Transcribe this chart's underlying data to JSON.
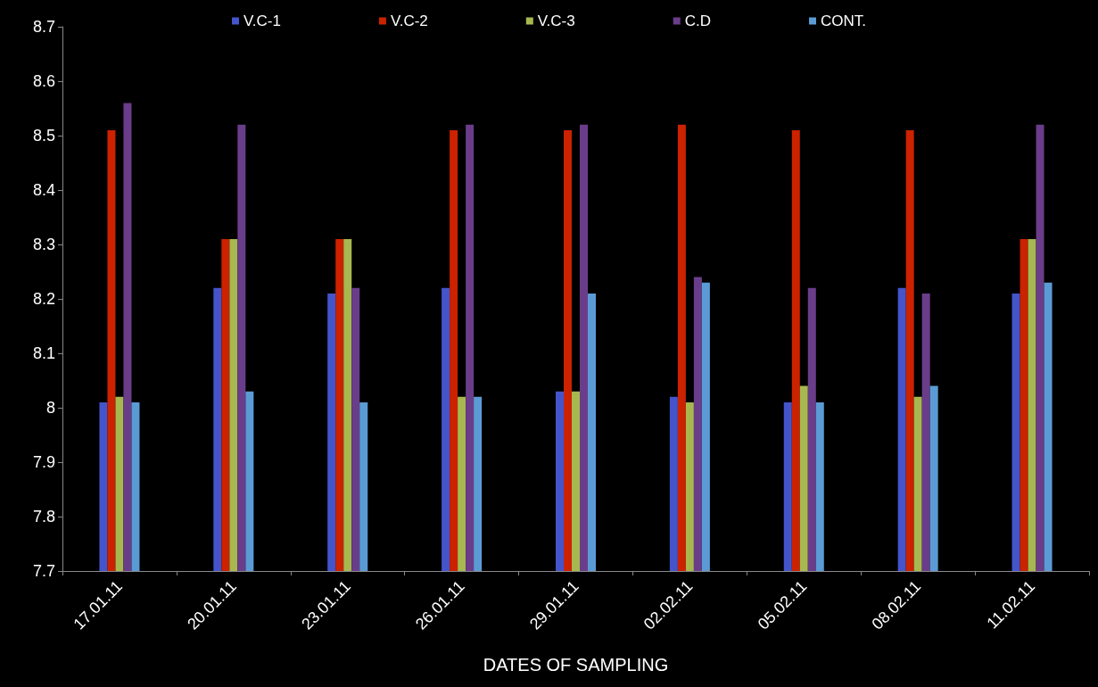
{
  "chart_data": {
    "type": "bar",
    "xlabel": "DATES OF SAMPLING",
    "categories": [
      "17.01.11",
      "20.01.11",
      "23.01.11",
      "26.01.11",
      "29.01.11",
      "02.02.11",
      "05.02.11",
      "08.02.11",
      "11.02.11"
    ],
    "series": [
      {
        "name": "V.C-1",
        "color": "#4455cc",
        "values": [
          8.01,
          8.22,
          8.21,
          8.22,
          8.03,
          8.02,
          8.01,
          8.22,
          8.21
        ]
      },
      {
        "name": "V.C-2",
        "color": "#cc2200",
        "values": [
          8.51,
          8.31,
          8.31,
          8.51,
          8.51,
          8.52,
          8.51,
          8.51,
          8.31
        ]
      },
      {
        "name": "V.C-3",
        "color": "#a8b850",
        "values": [
          8.02,
          8.31,
          8.31,
          8.02,
          8.03,
          8.01,
          8.04,
          8.02,
          8.31
        ]
      },
      {
        "name": "C.D",
        "color": "#6a3d8a",
        "values": [
          8.56,
          8.52,
          8.22,
          8.52,
          8.52,
          8.24,
          8.22,
          8.21,
          8.52
        ]
      },
      {
        "name": "CONT.",
        "color": "#5b9bd5",
        "values": [
          8.01,
          8.03,
          8.01,
          8.02,
          8.21,
          8.23,
          8.01,
          8.04,
          8.23
        ]
      }
    ],
    "ylim": [
      7.7,
      8.7
    ],
    "yticks": [
      7.7,
      7.8,
      7.9,
      8,
      8.1,
      8.2,
      8.3,
      8.4,
      8.5,
      8.6,
      8.7
    ],
    "grid": false,
    "legend": "top"
  }
}
